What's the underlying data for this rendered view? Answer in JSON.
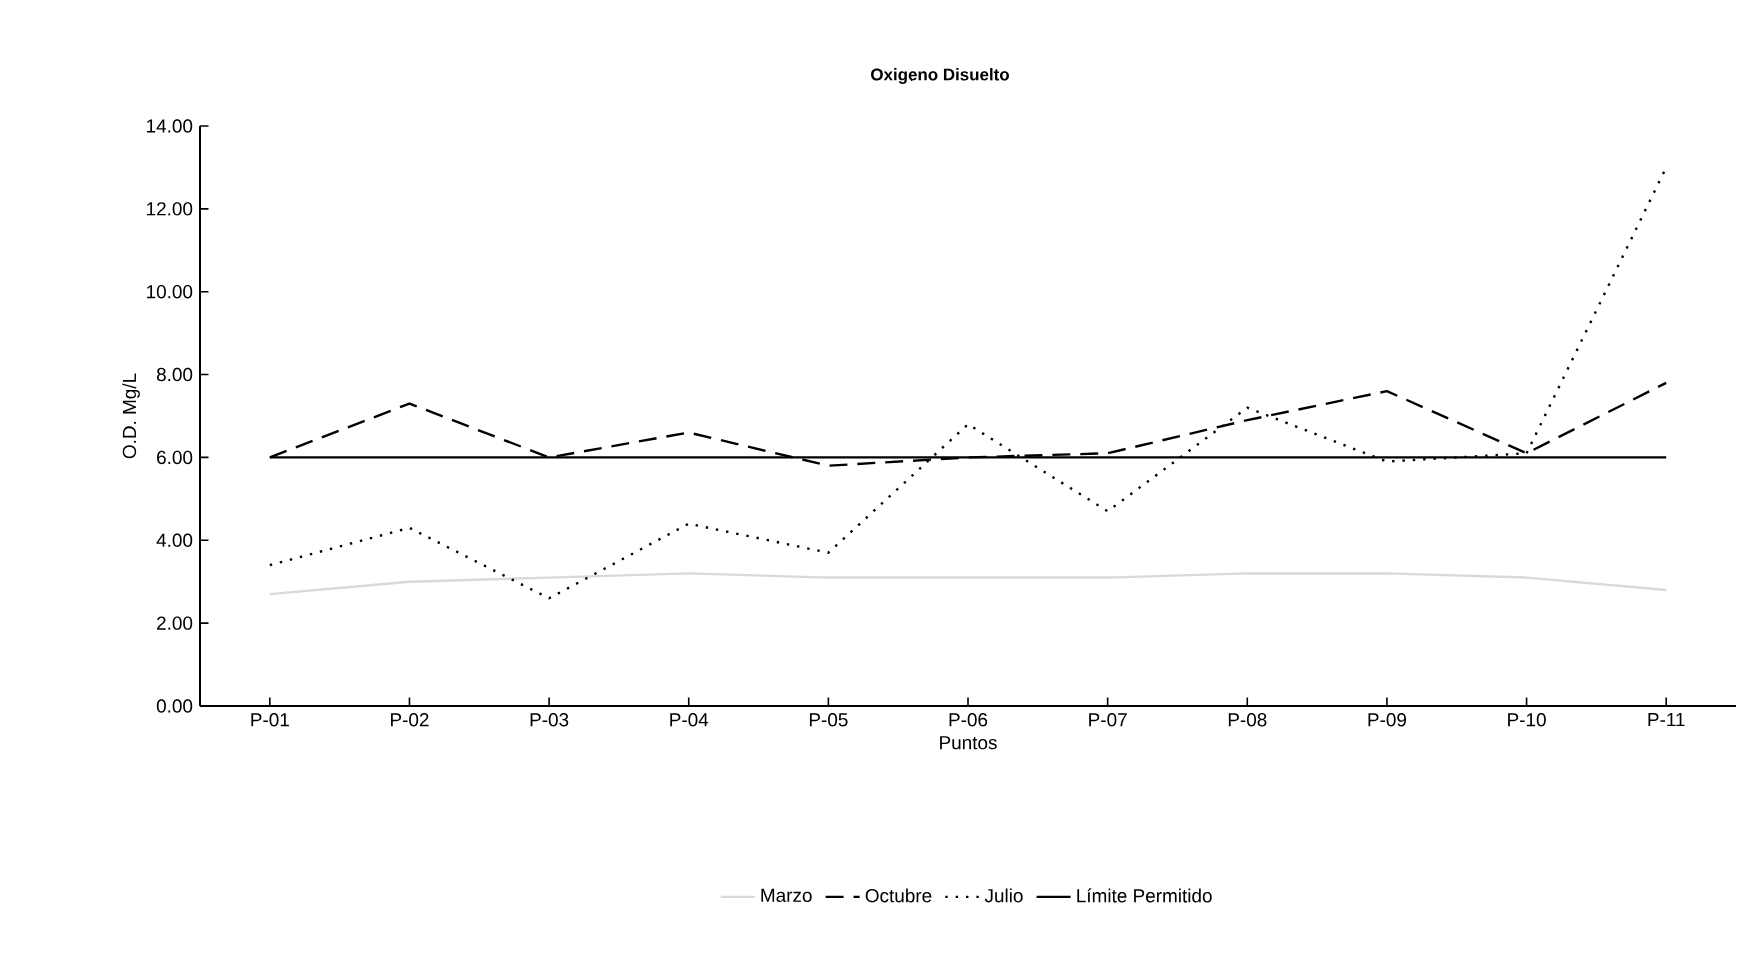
{
  "chart_data": {
    "type": "line",
    "title": "Oxigeno Disuelto",
    "xlabel": "Puntos",
    "ylabel": "O.D. Mg/L",
    "categories": [
      "P-01",
      "P-02",
      "P-03",
      "P-04",
      "P-05",
      "P-06",
      "P-07",
      "P-08",
      "P-09",
      "P-10",
      "P-11"
    ],
    "series": [
      {
        "name": "Marzo",
        "color": "#d9d9d9",
        "line_style": "solid",
        "values": [
          2.7,
          3.0,
          3.1,
          3.2,
          3.1,
          3.1,
          3.1,
          3.2,
          3.2,
          3.1,
          2.8
        ]
      },
      {
        "name": "Octubre",
        "color": "#000000",
        "line_style": "dashed",
        "values": [
          6.0,
          7.3,
          6.0,
          6.6,
          5.8,
          6.0,
          6.1,
          6.9,
          7.6,
          6.1,
          7.8
        ]
      },
      {
        "name": "Julio",
        "color": "#000000",
        "line_style": "dotted",
        "values": [
          3.4,
          4.3,
          2.6,
          4.4,
          3.7,
          6.8,
          4.7,
          7.2,
          5.9,
          6.1,
          13.0
        ]
      },
      {
        "name": "Límite Permitido",
        "color": "#000000",
        "line_style": "solid",
        "values": [
          6.0,
          6.0,
          6.0,
          6.0,
          6.0,
          6.0,
          6.0,
          6.0,
          6.0,
          6.0,
          6.0
        ]
      }
    ],
    "ylim": [
      0,
      14
    ],
    "yticks": [
      {
        "value": 0,
        "label": "0.00"
      },
      {
        "value": 2,
        "label": "2.00"
      },
      {
        "value": 4,
        "label": "4.00"
      },
      {
        "value": 6,
        "label": "6.00"
      },
      {
        "value": 8,
        "label": "8.00"
      },
      {
        "value": 10,
        "label": "10.00"
      },
      {
        "value": 12,
        "label": "12.00"
      },
      {
        "value": 14,
        "label": "14.00"
      }
    ],
    "grid": false,
    "legend": "bottom",
    "marker": "none"
  }
}
